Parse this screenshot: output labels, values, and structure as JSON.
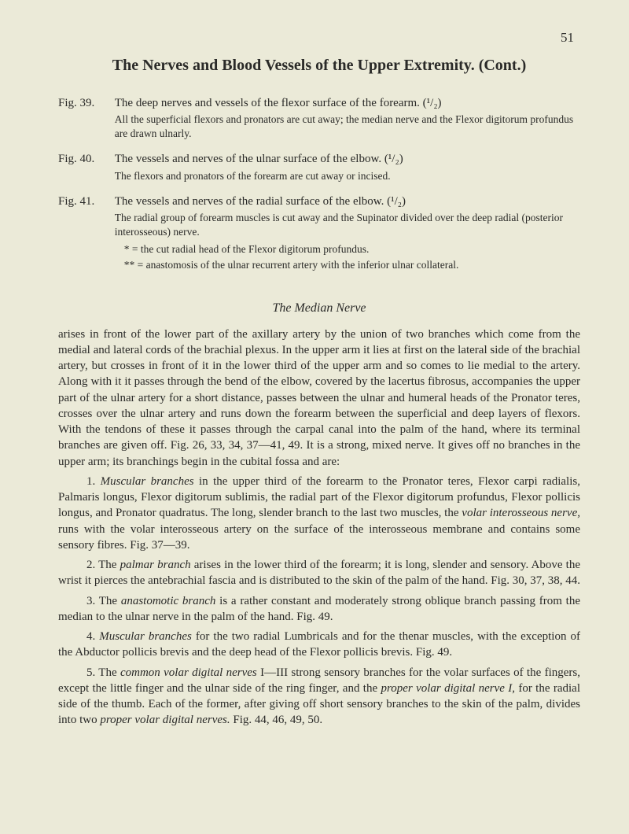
{
  "pageNumber": "51",
  "title": "The Nerves and Blood Vessels of the Upper Extremity. (Cont.)",
  "figs": [
    {
      "label": "Fig. 39.",
      "main": "The deep nerves and vessels of the flexor surface of the forearm. (¹/₂)",
      "sub": "All the superficial flexors and pronators are cut away; the median nerve and the Flexor digitorum profundus are drawn ulnarly."
    },
    {
      "label": "Fig. 40.",
      "main": "The vessels and nerves of the ulnar surface of the elbow. (¹/₂)",
      "sub": "The flexors and pronators of the forearm are cut away or incised."
    },
    {
      "label": "Fig. 41.",
      "main": "The vessels and nerves of the radial surface of the elbow. (¹/₂)",
      "sub": "The radial group of forearm muscles is cut away and the Supinator divided over the deep radial (posterior interosseous) nerve.",
      "notes": [
        "* = the cut radial head of the Flexor digitorum profundus.",
        "** = anastomosis of the ulnar recurrent artery with the inferior ulnar collateral."
      ]
    }
  ],
  "sectionHeading": "The Median Nerve",
  "intro": "arises in front of the lower part of the axillary artery by the union of two branches which come from the medial and lateral cords of the brachial plexus. In the upper arm it lies at first on the lateral side of the brachial artery, but crosses in front of it in the lower third of the upper arm and so comes to lie medial to the artery. Along with it it passes through the bend of the elbow, covered by the lacertus fibrosus, accompanies the upper part of the ulnar artery for a short distance, passes between the ulnar and humeral heads of the Pronator teres, crosses over the ulnar artery and runs down the forearm between the superficial and deep layers of flexors. With the tendons of these it passes through the carpal canal into the palm of the hand, where its terminal branches are given off. Fig. 26, 33, 34, 37—41, 49. It is a strong, mixed nerve. It gives off no branches in the upper arm; its branchings begin in the cubital fossa and are:",
  "items": {
    "i1": {
      "num": "1. ",
      "term": "Muscular branches",
      "rest": " in the upper third of the forearm to the Pronator teres, Flexor carpi radialis, Palmaris longus, Flexor digitorum sublimis, the radial part of the Flexor digitorum profundus, Flexor pollicis longus, and Pronator quadratus. The long, slender branch to the last two muscles, the ",
      "term2": "volar interosseous nerve,",
      "rest2": " runs with the volar interosseous artery on the surface of the interosseous membrane and contains some sensory fibres. Fig. 37—39."
    },
    "i2": {
      "num": "2. The ",
      "term": "palmar branch",
      "rest": " arises in the lower third of the forearm; it is long, slender and sensory. Above the wrist it pierces the antebrachial fascia and is distributed to the skin of the palm of the hand. Fig. 30, 37, 38, 44."
    },
    "i3": {
      "num": "3. The ",
      "term": "anastomotic branch",
      "rest": " is a rather constant and moderately strong oblique branch passing from the median to the ulnar nerve in the palm of the hand. Fig. 49."
    },
    "i4": {
      "num": "4. ",
      "term": "Muscular branches",
      "rest": " for the two radial Lumbricals and for the thenar muscles, with the exception of the Abductor pollicis brevis and the deep head of the Flexor pollicis brevis. Fig. 49."
    },
    "i5": {
      "num": "5. The ",
      "term": "common volar digital nerves",
      "rest": " I—III strong sensory branches for the volar surfaces of the fingers, except the little finger and the ulnar side of the ring finger, and the ",
      "term2": "proper volar digital nerve I,",
      "rest2": " for the radial side of the thumb. Each of the former, after giving off short sensory branches to the skin of the palm, divides into two ",
      "term3": "proper volar digital nerves.",
      "rest3": " Fig. 44, 46, 49, 50."
    }
  }
}
